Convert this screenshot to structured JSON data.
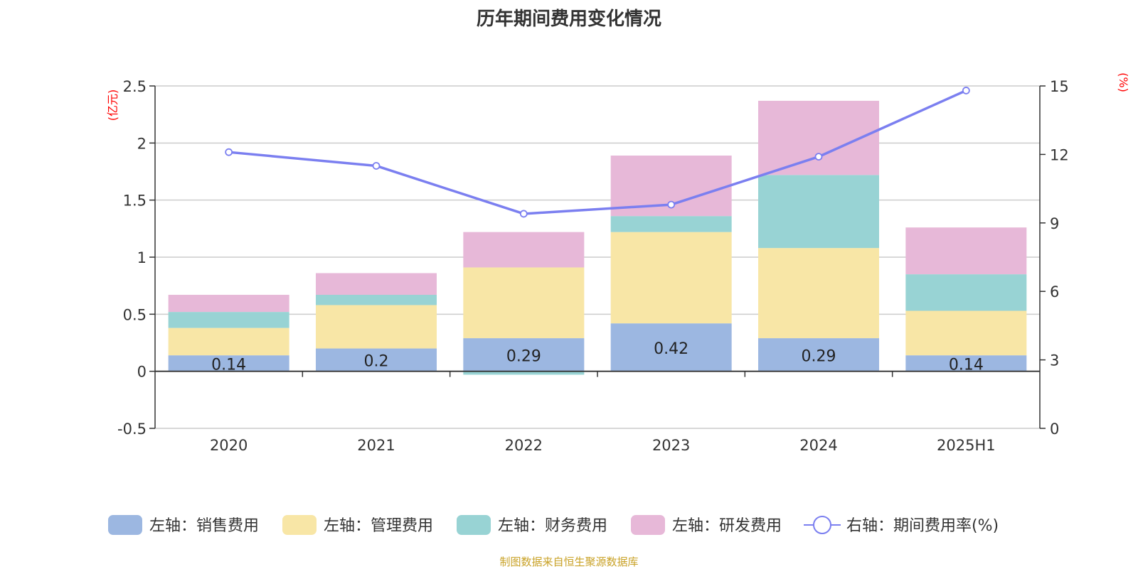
{
  "colors": {
    "sales": "#9cb7e1",
    "admin": "#f8e6a6",
    "finance": "#98d3d4",
    "rd": "#e7b8d8",
    "line": "#7b7ff0",
    "unit_labels": "#ff0000",
    "source": "#c9a227"
  },
  "chart_data": {
    "type": "bar",
    "title": "历年期间费用变化情况",
    "categories": [
      "2020",
      "2021",
      "2022",
      "2023",
      "2024",
      "2025H1"
    ],
    "left_axis": {
      "unit_label": "(亿元)",
      "ylim": [
        -0.5,
        2.5
      ],
      "ticks": [
        "2.5",
        "2",
        "1.5",
        "1",
        "0.5",
        "0",
        "-0.5"
      ]
    },
    "right_axis": {
      "unit_label": "(%)",
      "ylim": [
        0,
        15
      ],
      "ticks": [
        "15",
        "12",
        "9",
        "6",
        "3",
        "0"
      ]
    },
    "grid": true,
    "legend_position": "bottom",
    "series": [
      {
        "name": "左轴：销售费用",
        "key": "sales",
        "values": [
          0.14,
          0.2,
          0.29,
          0.42,
          0.29,
          0.14
        ],
        "show_labels": true
      },
      {
        "name": "左轴：管理费用",
        "key": "admin",
        "values": [
          0.24,
          0.38,
          0.62,
          0.8,
          0.79,
          0.39
        ]
      },
      {
        "name": "左轴：财务费用",
        "key": "finance",
        "values": [
          0.14,
          0.09,
          -0.03,
          0.14,
          0.64,
          0.32
        ]
      },
      {
        "name": "左轴：研发费用",
        "key": "rd",
        "values": [
          0.15,
          0.19,
          0.31,
          0.53,
          0.65,
          0.41
        ]
      }
    ],
    "line_series": {
      "name": "右轴：期间费用率(%)",
      "values": [
        12.1,
        11.5,
        9.4,
        9.8,
        11.9,
        14.8
      ]
    }
  },
  "source_note": "制图数据来自恒生聚源数据库"
}
